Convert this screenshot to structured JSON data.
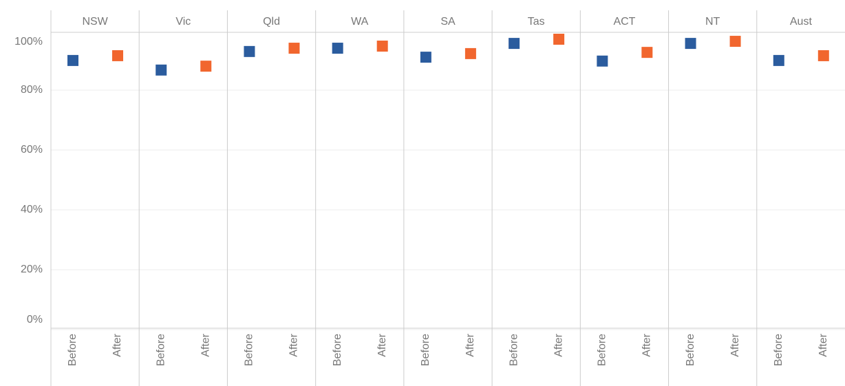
{
  "chart_data": {
    "type": "dot",
    "categories": [
      "NSW",
      "Vic",
      "Qld",
      "WA",
      "SA",
      "Tas",
      "ACT",
      "NT",
      "Aust"
    ],
    "series": [
      {
        "name": "Before",
        "color": "#2b5c9e",
        "values": [
          89.9,
          86.7,
          92.9,
          94.0,
          91.0,
          95.6,
          89.7,
          95.6,
          89.9
        ]
      },
      {
        "name": "After",
        "color": "#f1662e",
        "values": [
          91.5,
          88.0,
          94.0,
          94.7,
          92.2,
          97.0,
          92.6,
          96.3,
          91.5
        ]
      }
    ],
    "ylim": [
      0,
      99.3
    ],
    "yticks": [
      {
        "value": 0,
        "label": "0%"
      },
      {
        "value": 20,
        "label": "20%"
      },
      {
        "value": 40,
        "label": "40%"
      },
      {
        "value": 60,
        "label": "60%"
      },
      {
        "value": 80,
        "label": "80%"
      },
      {
        "value": 100,
        "label": "100%"
      }
    ],
    "grid": true
  }
}
